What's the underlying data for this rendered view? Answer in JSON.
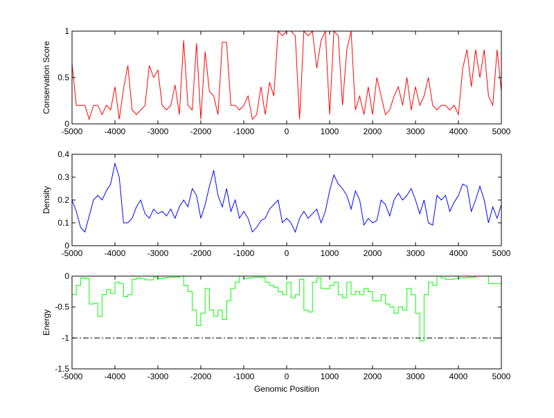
{
  "chart_data": [
    {
      "type": "line",
      "ylabel": "Conservation Score",
      "xlabel": "",
      "xlim": [
        -5000,
        5000
      ],
      "ylim": [
        0,
        1
      ],
      "xticks": [
        "-5000",
        "-4000",
        "-3000",
        "-2000",
        "-1000",
        "0",
        "1000",
        "2000",
        "3000",
        "4000",
        "5000"
      ],
      "yticks": [
        "0",
        "0.5",
        "1"
      ],
      "color": "#ff0000",
      "step": false,
      "x_start": -5000,
      "x_step": 100,
      "values": [
        0.65,
        0.2,
        0.2,
        0.2,
        0.05,
        0.2,
        0.2,
        0.1,
        0.2,
        0.15,
        0.4,
        0.05,
        0.38,
        0.63,
        0.15,
        0.1,
        0.15,
        0.2,
        0.63,
        0.5,
        0.58,
        0.2,
        0.15,
        0.2,
        0.42,
        0.1,
        0.9,
        0.2,
        0.15,
        0.87,
        0.05,
        0.78,
        0.35,
        0.3,
        0.1,
        0.88,
        0.88,
        0.2,
        0.2,
        0.15,
        0.2,
        0.3,
        0.05,
        0.1,
        0.4,
        0.1,
        0.45,
        0.3,
        1,
        0.95,
        1,
        1,
        0.95,
        0.05,
        1,
        0.95,
        1,
        0.6,
        0.9,
        1,
        0.1,
        1,
        0.95,
        0.2,
        0.8,
        1,
        0.15,
        0.3,
        0.1,
        0.4,
        0.1,
        0.5,
        0.3,
        0.1,
        0.15,
        0.3,
        0.4,
        0.2,
        0.5,
        0.15,
        0.4,
        0.2,
        0.3,
        0.5,
        0.2,
        0.15,
        0.2,
        0.2,
        0.15,
        0.2,
        0.1,
        0.6,
        0.8,
        0.4,
        0.8,
        0.5,
        0.8,
        0.3,
        0.2,
        0.8,
        0.35
      ]
    },
    {
      "type": "line",
      "ylabel": "Density",
      "xlabel": "",
      "xlim": [
        -5000,
        5000
      ],
      "ylim": [
        0,
        0.4
      ],
      "xticks": [
        "-5000",
        "-4000",
        "-3000",
        "-2000",
        "-1000",
        "0",
        "1000",
        "2000",
        "3000",
        "4000",
        "5000"
      ],
      "yticks": [
        "0",
        "0.1",
        "0.2",
        "0.3",
        "0.4"
      ],
      "color": "#0000ff",
      "step": false,
      "x_start": -5000,
      "x_step": 100,
      "values": [
        0.2,
        0.15,
        0.08,
        0.06,
        0.13,
        0.2,
        0.22,
        0.2,
        0.24,
        0.27,
        0.36,
        0.3,
        0.1,
        0.1,
        0.12,
        0.17,
        0.2,
        0.14,
        0.12,
        0.16,
        0.14,
        0.15,
        0.13,
        0.16,
        0.12,
        0.17,
        0.2,
        0.17,
        0.25,
        0.22,
        0.12,
        0.18,
        0.26,
        0.33,
        0.22,
        0.17,
        0.25,
        0.15,
        0.2,
        0.12,
        0.15,
        0.12,
        0.06,
        0.08,
        0.11,
        0.12,
        0.16,
        0.18,
        0.2,
        0.1,
        0.12,
        0.1,
        0.06,
        0.12,
        0.15,
        0.12,
        0.14,
        0.16,
        0.1,
        0.15,
        0.24,
        0.31,
        0.27,
        0.25,
        0.22,
        0.16,
        0.24,
        0.2,
        0.09,
        0.12,
        0.1,
        0.11,
        0.2,
        0.18,
        0.13,
        0.2,
        0.23,
        0.2,
        0.22,
        0.25,
        0.2,
        0.14,
        0.2,
        0.1,
        0.09,
        0.22,
        0.2,
        0.22,
        0.15,
        0.19,
        0.22,
        0.27,
        0.26,
        0.15,
        0.2,
        0.26,
        0.2,
        0.1,
        0.17,
        0.12,
        0.18
      ]
    },
    {
      "type": "line",
      "ylabel": "Energy",
      "xlabel": "Genomic Position",
      "xlim": [
        -5000,
        5000
      ],
      "ylim": [
        -1.5,
        0
      ],
      "xticks": [
        "-5000",
        "-4000",
        "-3000",
        "-2000",
        "-1000",
        "0",
        "1000",
        "2000",
        "3000",
        "4000",
        "5000"
      ],
      "yticks": [
        "-1.5",
        "-1",
        "-0.5",
        "0"
      ],
      "color": "#00ff00",
      "step": true,
      "reference_line": {
        "y": -1,
        "style": "dash-dot",
        "color": "#000000"
      },
      "x_start": -5000,
      "x_step": 100,
      "values": [
        -0.3,
        -0.15,
        -0.03,
        -0.04,
        -0.45,
        -0.44,
        -0.65,
        -0.3,
        -0.22,
        -0.28,
        -0.1,
        -0.12,
        -0.33,
        -0.3,
        -0.05,
        -0.03,
        -0.04,
        -0.06,
        -0.06,
        -0.02,
        -0.04,
        -0.03,
        -0.02,
        -0.02,
        -0.02,
        0,
        -0.15,
        -0.25,
        -0.55,
        -0.8,
        -0.6,
        -0.2,
        -0.55,
        -0.65,
        -0.55,
        -0.7,
        -0.4,
        -0.2,
        -0.1,
        0,
        -0.04,
        -0.03,
        -0.02,
        -0.02,
        -0.02,
        -0.1,
        -0.15,
        -0.18,
        -0.25,
        -0.3,
        -0.1,
        -0.35,
        -0.3,
        -0.05,
        -0.55,
        -0.58,
        -0.1,
        -0.03,
        -0.2,
        -0.2,
        -0.15,
        -0.1,
        -0.3,
        -0.35,
        -0.1,
        -0.3,
        -0.25,
        -0.3,
        -0.2,
        -0.25,
        -0.4,
        -0.4,
        -0.3,
        -0.45,
        -0.5,
        -0.6,
        -0.5,
        -0.55,
        -0.2,
        -0.3,
        -0.6,
        -1.05,
        -0.3,
        -0.1,
        -0.15,
        0,
        -0.03,
        -0.05,
        -0.05,
        -0.04,
        -0.03,
        -0.03,
        -0.02,
        -0.02,
        0,
        0,
        0,
        -0.12,
        -0.12,
        -0.12,
        -0.12
      ]
    }
  ]
}
